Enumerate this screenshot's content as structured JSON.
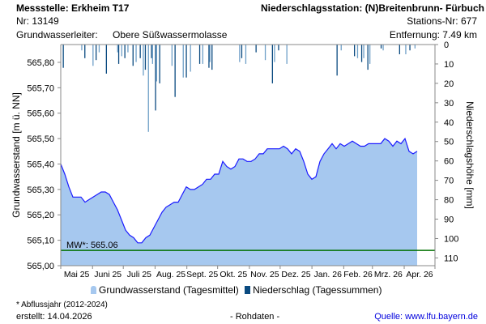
{
  "header": {
    "station": "Messstelle: Erkheim T17",
    "number": "Nr: 13149",
    "aquifer_label": "Grundwasserleiter:",
    "aquifer": "Obere Süßwassermolasse",
    "precip_station": "Niederschlagsstation: (N)Breitenbrunn- Fürbuch",
    "precip_station_nr": "Stations-Nr: 677",
    "distance": "Entfernung: 7.49 km"
  },
  "footer": {
    "note": "* Abflussjahr (2012-2024)",
    "created": "erstellt:  14.04.2026",
    "raw": "- Rohdaten -",
    "source": "Quelle: www.lfu.bayern.de"
  },
  "colors": {
    "area": "#a6c8ef",
    "line": "#1a1aff",
    "precip_dark": "#0a4a80",
    "precip_light": "#6fa0c8",
    "mean": "#007000"
  },
  "chart_data": {
    "type": "area",
    "ylabel": "Grundwasserstand [m ü. NN]",
    "y2label": "Niederschlagshöhe [mm]",
    "ylim": [
      565.0,
      565.87
    ],
    "y_ticks": [
      "565,00",
      "565,10",
      "565,20",
      "565,30",
      "565,40",
      "565,50",
      "565,60",
      "565,70",
      "565,80"
    ],
    "y_tick_values": [
      565.0,
      565.1,
      565.2,
      565.3,
      565.4,
      565.5,
      565.6,
      565.7,
      565.8
    ],
    "y2lim": [
      0,
      114
    ],
    "y2_ticks": [
      0,
      10,
      20,
      30,
      40,
      50,
      60,
      70,
      80,
      90,
      100,
      110
    ],
    "x_range_days": [
      0,
      365
    ],
    "x_start": "01.05.2025",
    "month_labels": [
      "Mai 25",
      "Juni 25",
      "Juli 25",
      "Aug. 25",
      "Sept. 25",
      "Okt. 25",
      "Nov. 25",
      "Dez. 25",
      "Jan. 26",
      "Feb. 26",
      "Mrz. 26",
      "Apr. 26"
    ],
    "month_start_days": [
      0,
      31,
      61,
      92,
      123,
      153,
      184,
      214,
      245,
      276,
      304,
      335,
      365
    ],
    "mean": {
      "label": "MW*: 565.06",
      "value": 565.06
    },
    "legend": [
      "Grundwasserstand (Tagesmittel)",
      "Niederschlag (Tagessummen)"
    ],
    "groundwater": {
      "name": "Grundwasserstand (Tagesmittel)",
      "step_days": 3.95,
      "values": [
        565.4,
        565.36,
        565.31,
        565.27,
        565.27,
        565.27,
        565.25,
        565.26,
        565.27,
        565.28,
        565.29,
        565.29,
        565.28,
        565.25,
        565.22,
        565.18,
        565.14,
        565.12,
        565.11,
        565.09,
        565.09,
        565.11,
        565.12,
        565.15,
        565.18,
        565.21,
        565.23,
        565.24,
        565.25,
        565.25,
        565.28,
        565.31,
        565.3,
        565.3,
        565.31,
        565.32,
        565.34,
        565.34,
        565.36,
        565.36,
        565.41,
        565.39,
        565.38,
        565.39,
        565.42,
        565.42,
        565.41,
        565.41,
        565.42,
        565.44,
        565.44,
        565.46,
        565.46,
        565.46,
        565.46,
        565.47,
        565.46,
        565.44,
        565.46,
        565.45,
        565.41,
        565.36,
        565.34,
        565.35,
        565.41,
        565.44,
        565.46,
        565.48,
        565.46,
        565.48,
        565.47,
        565.48,
        565.49,
        565.48,
        565.47,
        565.47,
        565.48,
        565.48,
        565.48,
        565.48,
        565.5,
        565.49,
        565.47,
        565.49,
        565.48,
        565.5,
        565.45,
        565.44,
        565.45
      ]
    },
    "precipitation": {
      "name": "Niederschlag (Tagessummen)",
      "day_mm": [
        [
          2,
          12
        ],
        [
          20,
          3
        ],
        [
          23,
          7
        ],
        [
          31,
          11
        ],
        [
          34,
          8
        ],
        [
          37,
          4
        ],
        [
          44,
          15
        ],
        [
          55,
          4
        ],
        [
          56,
          10
        ],
        [
          59,
          6
        ],
        [
          62,
          7
        ],
        [
          65,
          4
        ],
        [
          70,
          11
        ],
        [
          73,
          9
        ],
        [
          77,
          7
        ],
        [
          80,
          16
        ],
        [
          82,
          13
        ],
        [
          85,
          45
        ],
        [
          88,
          7
        ],
        [
          89,
          10
        ],
        [
          92,
          34
        ],
        [
          93,
          19
        ],
        [
          96,
          20
        ],
        [
          108,
          11
        ],
        [
          111,
          27
        ],
        [
          119,
          17
        ],
        [
          122,
          17
        ],
        [
          126,
          14
        ],
        [
          135,
          10
        ],
        [
          138,
          10
        ],
        [
          144,
          12
        ],
        [
          145,
          9
        ],
        [
          147,
          13
        ],
        [
          174,
          9
        ],
        [
          176,
          7
        ],
        [
          180,
          10
        ],
        [
          190,
          4
        ],
        [
          199,
          8
        ],
        [
          206,
          20
        ],
        [
          208,
          9
        ],
        [
          212,
          3
        ],
        [
          220,
          10
        ],
        [
          269,
          16
        ],
        [
          273,
          3
        ],
        [
          286,
          6
        ],
        [
          289,
          7
        ],
        [
          293,
          9
        ],
        [
          295,
          7
        ],
        [
          299,
          13
        ],
        [
          301,
          10
        ],
        [
          312,
          2
        ],
        [
          314,
          3
        ],
        [
          330,
          5
        ],
        [
          336,
          5
        ],
        [
          340,
          3
        ],
        [
          345,
          2
        ]
      ]
    }
  }
}
